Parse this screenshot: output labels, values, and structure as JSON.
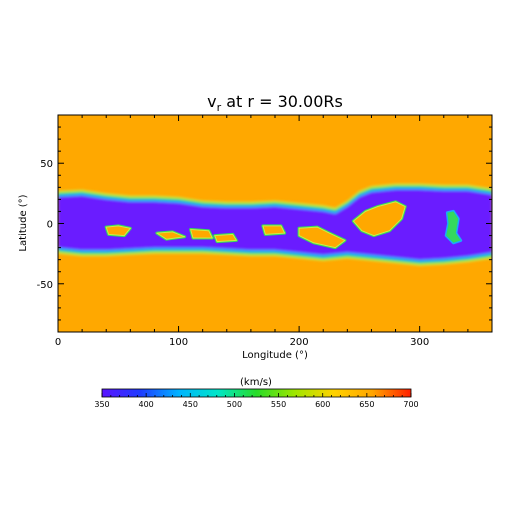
{
  "chart_data": {
    "type": "heatmap",
    "title": {
      "main": "v",
      "subscript": "r",
      "rest": " at r = 30.00Rs"
    },
    "xlabel": "Longitude (°)",
    "ylabel": "Latitude (°)",
    "xlim": [
      0,
      360
    ],
    "ylim": [
      -90,
      90
    ],
    "x_ticks": [
      "0",
      "100",
      "200",
      "300"
    ],
    "y_ticks": [
      "50",
      "0",
      "-50"
    ],
    "colorbar": {
      "label": "(km/s)",
      "range": [
        350,
        700
      ],
      "tick_labels": [
        "350",
        "400",
        "450",
        "500",
        "550",
        "600",
        "650",
        "700"
      ],
      "colors": [
        "#5a14ff",
        "#1e3cff",
        "#00b4ff",
        "#00e6c8",
        "#28dc28",
        "#a0e600",
        "#ffd200",
        "#ffa500",
        "#ff1e00"
      ]
    },
    "field_colors": {
      "slow_wind": "#ffa800",
      "fast_wind": "#6a1cff",
      "edge_outer": "#ccec4a",
      "edge_mid": "#34d85c",
      "edge_inner": "#1aa8ff"
    },
    "streamer_belt": {
      "description_free": true,
      "upper_boundary": [
        [
          0,
          22
        ],
        [
          20,
          23
        ],
        [
          40,
          20
        ],
        [
          60,
          18
        ],
        [
          80,
          18
        ],
        [
          100,
          17
        ],
        [
          120,
          14
        ],
        [
          140,
          13
        ],
        [
          160,
          13
        ],
        [
          180,
          14
        ],
        [
          200,
          12
        ],
        [
          220,
          10
        ],
        [
          230,
          8
        ],
        [
          240,
          14
        ],
        [
          250,
          22
        ],
        [
          260,
          26
        ],
        [
          280,
          28
        ],
        [
          300,
          28
        ],
        [
          320,
          27
        ],
        [
          340,
          27
        ],
        [
          360,
          24
        ]
      ],
      "lower_boundary": [
        [
          0,
          -20
        ],
        [
          20,
          -22
        ],
        [
          40,
          -22
        ],
        [
          60,
          -21
        ],
        [
          80,
          -20
        ],
        [
          100,
          -20
        ],
        [
          120,
          -20
        ],
        [
          140,
          -21
        ],
        [
          160,
          -22
        ],
        [
          180,
          -22
        ],
        [
          200,
          -24
        ],
        [
          210,
          -25
        ],
        [
          220,
          -26
        ],
        [
          240,
          -24
        ],
        [
          260,
          -26
        ],
        [
          280,
          -28
        ],
        [
          300,
          -30
        ],
        [
          320,
          -29
        ],
        [
          340,
          -27
        ],
        [
          360,
          -24
        ]
      ],
      "slow_pockets": [
        [
          [
            40,
            -3
          ],
          [
            50,
            -2
          ],
          [
            60,
            -4
          ],
          [
            55,
            -10
          ],
          [
            42,
            -9
          ]
        ],
        [
          [
            82,
            -8
          ],
          [
            95,
            -7
          ],
          [
            105,
            -11
          ],
          [
            90,
            -13
          ]
        ],
        [
          [
            110,
            -5
          ],
          [
            125,
            -6
          ],
          [
            128,
            -12
          ],
          [
            112,
            -12
          ]
        ],
        [
          [
            130,
            -10
          ],
          [
            145,
            -9
          ],
          [
            148,
            -14
          ],
          [
            132,
            -15
          ]
        ],
        [
          [
            170,
            -2
          ],
          [
            185,
            -2
          ],
          [
            188,
            -8
          ],
          [
            172,
            -9
          ]
        ],
        [
          [
            200,
            -4
          ],
          [
            215,
            -3
          ],
          [
            225,
            -8
          ],
          [
            238,
            -14
          ],
          [
            230,
            -20
          ],
          [
            212,
            -16
          ],
          [
            200,
            -10
          ]
        ],
        [
          [
            245,
            2
          ],
          [
            255,
            10
          ],
          [
            265,
            14
          ],
          [
            280,
            18
          ],
          [
            288,
            14
          ],
          [
            285,
            4
          ],
          [
            275,
            -6
          ],
          [
            262,
            -10
          ],
          [
            252,
            -6
          ]
        ]
      ],
      "fast_pockets": [
        [
          [
            323,
            9
          ],
          [
            328,
            10
          ],
          [
            332,
            4
          ],
          [
            330,
            -8
          ],
          [
            334,
            -14
          ],
          [
            328,
            -16
          ],
          [
            322,
            -10
          ],
          [
            324,
            0
          ]
        ]
      ]
    }
  }
}
